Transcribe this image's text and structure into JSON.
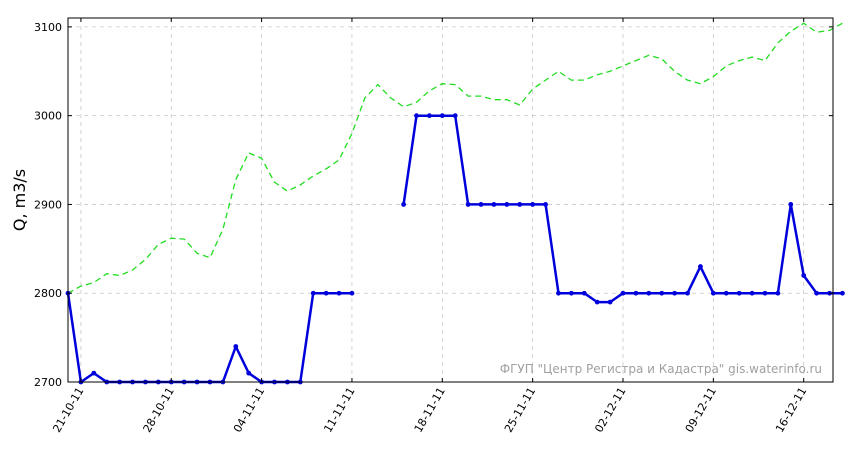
{
  "chart_data": {
    "type": "line",
    "ylabel": "Q, m3/s",
    "xlabel": "",
    "x_start": "20-10-11",
    "x_end": "18-12-11",
    "ylim": [
      2700,
      3110
    ],
    "yticks": [
      2700,
      2800,
      2900,
      3000,
      3100
    ],
    "xticks": [
      "21-10-11",
      "28-10-11",
      "04-11-11",
      "11-11-11",
      "18-11-11",
      "25-11-11",
      "02-12-11",
      "09-12-11",
      "16-12-11"
    ],
    "grid": true,
    "watermark": "ФГУП \"Центр Регистра и Кадастра\"   gis.waterinfo.ru",
    "series": [
      {
        "style": "solid-markers",
        "color": "#0000dd",
        "points": [
          [
            "20-10-11",
            2800
          ],
          [
            "21-10-11",
            2700
          ],
          [
            "22-10-11",
            2710
          ],
          [
            "23-10-11",
            2700
          ],
          [
            "24-10-11",
            2700
          ],
          [
            "25-10-11",
            2700
          ],
          [
            "26-10-11",
            2700
          ],
          [
            "27-10-11",
            2700
          ],
          [
            "28-10-11",
            2700
          ],
          [
            "29-10-11",
            2700
          ],
          [
            "30-10-11",
            2700
          ],
          [
            "31-10-11",
            2700
          ],
          [
            "01-11-11",
            2700
          ],
          [
            "02-11-11",
            2740
          ],
          [
            "03-11-11",
            2710
          ],
          [
            "04-11-11",
            2700
          ],
          [
            "05-11-11",
            2700
          ],
          [
            "06-11-11",
            2700
          ],
          [
            "07-11-11",
            2700
          ],
          [
            "08-11-11",
            2800
          ],
          [
            "09-11-11",
            2800
          ],
          [
            "10-11-11",
            2800
          ],
          [
            "11-11-11",
            2800
          ],
          [
            "15-11-11",
            2900
          ],
          [
            "16-11-11",
            3000
          ],
          [
            "17-11-11",
            3000
          ],
          [
            "18-11-11",
            3000
          ],
          [
            "19-11-11",
            3000
          ],
          [
            "20-11-11",
            2900
          ],
          [
            "21-11-11",
            2900
          ],
          [
            "22-11-11",
            2900
          ],
          [
            "23-11-11",
            2900
          ],
          [
            "24-11-11",
            2900
          ],
          [
            "25-11-11",
            2900
          ],
          [
            "26-11-11",
            2900
          ],
          [
            "27-11-11",
            2800
          ],
          [
            "28-11-11",
            2800
          ],
          [
            "29-11-11",
            2800
          ],
          [
            "30-11-11",
            2790
          ],
          [
            "01-12-11",
            2790
          ],
          [
            "02-12-11",
            2800
          ],
          [
            "03-12-11",
            2800
          ],
          [
            "04-12-11",
            2800
          ],
          [
            "05-12-11",
            2800
          ],
          [
            "06-12-11",
            2800
          ],
          [
            "07-12-11",
            2800
          ],
          [
            "08-12-11",
            2830
          ],
          [
            "09-12-11",
            2800
          ],
          [
            "10-12-11",
            2800
          ],
          [
            "11-12-11",
            2800
          ],
          [
            "12-12-11",
            2800
          ],
          [
            "13-12-11",
            2800
          ],
          [
            "14-12-11",
            2800
          ],
          [
            "15-12-11",
            2900
          ],
          [
            "16-12-11",
            2820
          ],
          [
            "17-12-11",
            2800
          ],
          [
            "18-12-11",
            2800
          ],
          [
            "19-12-11",
            2800
          ]
        ],
        "gaps_after": [
          "11-11-11"
        ]
      },
      {
        "style": "dashed",
        "color": "#22dd22",
        "points": [
          [
            "20-10-11",
            2800
          ],
          [
            "21-10-11",
            2808
          ],
          [
            "22-10-11",
            2812
          ],
          [
            "23-10-11",
            2822
          ],
          [
            "24-10-11",
            2820
          ],
          [
            "25-10-11",
            2826
          ],
          [
            "26-10-11",
            2838
          ],
          [
            "27-10-11",
            2855
          ],
          [
            "28-10-11",
            2862
          ],
          [
            "29-10-11",
            2861
          ],
          [
            "30-10-11",
            2845
          ],
          [
            "31-10-11",
            2840
          ],
          [
            "01-11-11",
            2872
          ],
          [
            "02-11-11",
            2928
          ],
          [
            "03-11-11",
            2958
          ],
          [
            "04-11-11",
            2952
          ],
          [
            "05-11-11",
            2925
          ],
          [
            "06-11-11",
            2915
          ],
          [
            "07-11-11",
            2922
          ],
          [
            "08-11-11",
            2932
          ],
          [
            "09-11-11",
            2940
          ],
          [
            "10-11-11",
            2950
          ],
          [
            "11-11-11",
            2980
          ],
          [
            "12-11-11",
            3020
          ],
          [
            "13-11-11",
            3035
          ],
          [
            "14-11-11",
            3020
          ],
          [
            "15-11-11",
            3010
          ],
          [
            "16-11-11",
            3015
          ],
          [
            "17-11-11",
            3028
          ],
          [
            "18-11-11",
            3036
          ],
          [
            "19-11-11",
            3035
          ],
          [
            "20-11-11",
            3022
          ],
          [
            "21-11-11",
            3022
          ],
          [
            "22-11-11",
            3018
          ],
          [
            "23-11-11",
            3018
          ],
          [
            "24-11-11",
            3012
          ],
          [
            "25-11-11",
            3030
          ],
          [
            "26-11-11",
            3040
          ],
          [
            "27-11-11",
            3050
          ],
          [
            "28-11-11",
            3040
          ],
          [
            "29-11-11",
            3040
          ],
          [
            "30-11-11",
            3046
          ],
          [
            "01-12-11",
            3050
          ],
          [
            "02-12-11",
            3056
          ],
          [
            "03-12-11",
            3062
          ],
          [
            "04-12-11",
            3068
          ],
          [
            "05-12-11",
            3064
          ],
          [
            "06-12-11",
            3050
          ],
          [
            "07-12-11",
            3040
          ],
          [
            "08-12-11",
            3036
          ],
          [
            "09-12-11",
            3044
          ],
          [
            "10-12-11",
            3056
          ],
          [
            "11-12-11",
            3062
          ],
          [
            "12-12-11",
            3066
          ],
          [
            "13-12-11",
            3062
          ],
          [
            "14-12-11",
            3082
          ],
          [
            "15-12-11",
            3095
          ],
          [
            "16-12-11",
            3104
          ],
          [
            "17-12-11",
            3094
          ],
          [
            "18-12-11",
            3096
          ],
          [
            "19-12-11",
            3104
          ]
        ]
      }
    ]
  }
}
